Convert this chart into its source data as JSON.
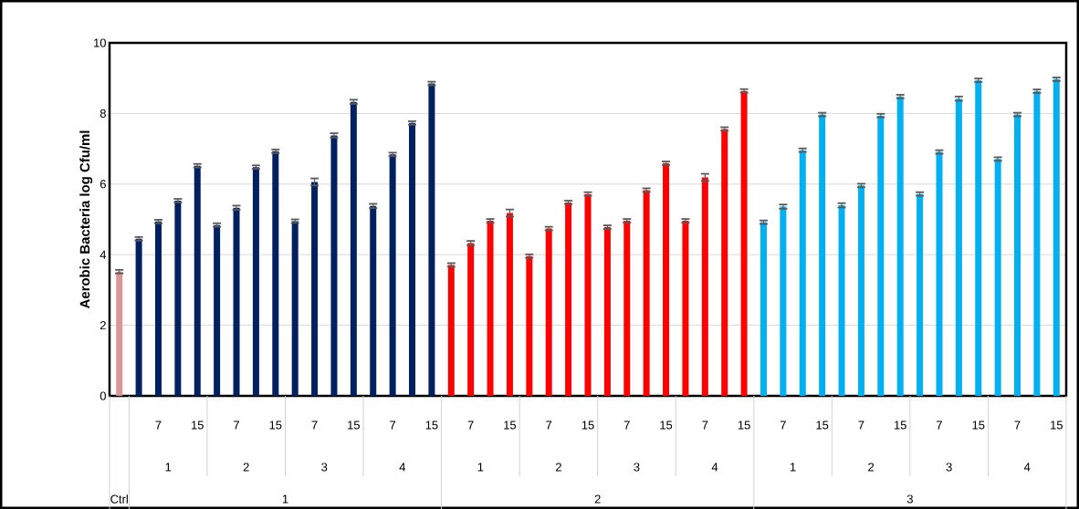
{
  "chart_data": {
    "type": "bar",
    "ylabel": "Aerobic Bacteria log Cfu/ml",
    "categories": [
      null,
      null,
      "7",
      null,
      "15",
      null,
      "7",
      null,
      "15",
      null,
      "7",
      null,
      "15",
      null,
      "7",
      null,
      "15",
      null,
      "7",
      null,
      "15",
      null,
      "7",
      null,
      "15",
      null,
      "7",
      null,
      "15",
      null,
      "7",
      null,
      "15",
      null,
      "7",
      null,
      "15",
      null,
      "7",
      null,
      "15",
      null,
      "7",
      null,
      "15",
      null,
      "7",
      null,
      "15"
    ],
    "values": [
      3.52,
      4.45,
      4.94,
      5.53,
      6.52,
      4.84,
      5.33,
      6.48,
      6.93,
      4.95,
      6.06,
      7.38,
      8.33,
      5.38,
      6.84,
      7.73,
      8.85,
      3.71,
      4.33,
      4.96,
      5.18,
      3.96,
      4.74,
      5.48,
      5.72,
      4.78,
      4.96,
      5.83,
      6.59,
      4.96,
      6.19,
      7.56,
      8.64,
      4.92,
      5.36,
      6.96,
      7.97,
      5.4,
      5.96,
      7.94,
      8.48,
      5.72,
      6.91,
      8.42,
      8.94,
      6.71,
      7.97,
      8.63,
      8.97
    ],
    "errors": [
      0.05,
      0.05,
      0.05,
      0.05,
      0.05,
      0.05,
      0.06,
      0.05,
      0.05,
      0.05,
      0.1,
      0.06,
      0.06,
      0.06,
      0.05,
      0.05,
      0.05,
      0.05,
      0.06,
      0.05,
      0.1,
      0.05,
      0.05,
      0.05,
      0.05,
      0.05,
      0.05,
      0.05,
      0.05,
      0.05,
      0.1,
      0.05,
      0.05,
      0.05,
      0.06,
      0.05,
      0.05,
      0.06,
      0.05,
      0.05,
      0.05,
      0.05,
      0.05,
      0.06,
      0.05,
      0.05,
      0.05,
      0.05,
      0.05
    ],
    "colors": [
      "#d99694",
      "#002060",
      "#002060",
      "#002060",
      "#002060",
      "#002060",
      "#002060",
      "#002060",
      "#002060",
      "#002060",
      "#002060",
      "#002060",
      "#002060",
      "#002060",
      "#002060",
      "#002060",
      "#002060",
      "#ff0000",
      "#ff0000",
      "#ff0000",
      "#ff0000",
      "#ff0000",
      "#ff0000",
      "#ff0000",
      "#ff0000",
      "#ff0000",
      "#ff0000",
      "#ff0000",
      "#ff0000",
      "#ff0000",
      "#ff0000",
      "#ff0000",
      "#ff0000",
      "#00b0f0",
      "#00b0f0",
      "#00b0f0",
      "#00b0f0",
      "#00b0f0",
      "#00b0f0",
      "#00b0f0",
      "#00b0f0",
      "#00b0f0",
      "#00b0f0",
      "#00b0f0",
      "#00b0f0",
      "#00b0f0",
      "#00b0f0",
      "#00b0f0",
      "#00b0f0"
    ],
    "annotations": [
      "1",
      "2",
      "3",
      "4",
      "1",
      "2",
      "3",
      "4",
      "1",
      "2",
      "3",
      "4",
      "Ctrl",
      "1",
      "2",
      "3"
    ],
    "ylim": [
      0,
      10
    ],
    "yticks": [
      0,
      2,
      4,
      6,
      8,
      10
    ],
    "grid": "y"
  }
}
